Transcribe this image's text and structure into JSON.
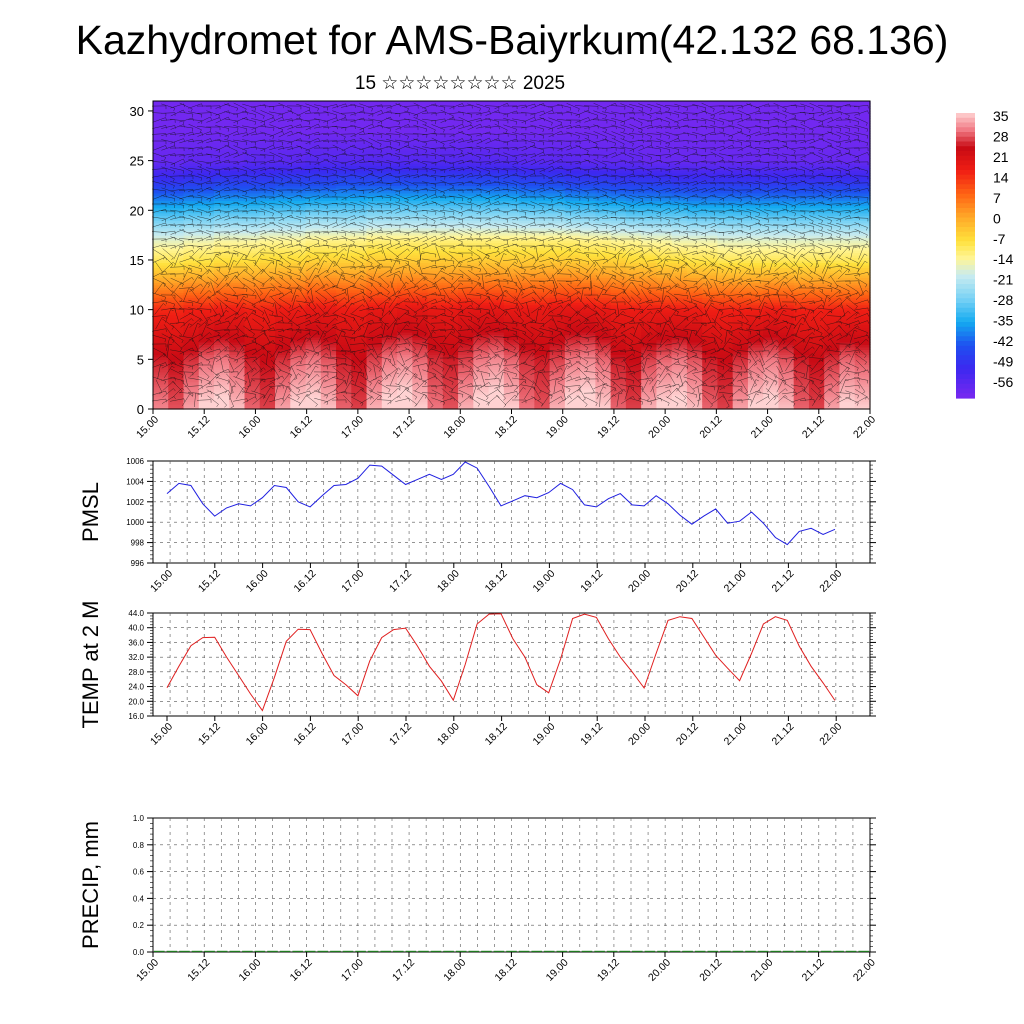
{
  "header": {
    "title": "Kazhydromet for AMS-Baiyrkum(42.132 68.136)",
    "subtitle": "15 ☆☆☆☆☆☆☆☆ 2025"
  },
  "time_labels": [
    "15.00",
    "15.12",
    "16.00",
    "16.12",
    "17.00",
    "17.12",
    "18.00",
    "18.12",
    "19.00",
    "19.12",
    "20.00",
    "20.12",
    "21.00",
    "21.12",
    "22.00"
  ],
  "chart_data": [
    {
      "type": "heatmap",
      "title": "Kazhydromet for AMS-Baiyrkum(42.132 68.136)",
      "subtitle": "15 ☆☆☆☆☆☆☆☆ 2025",
      "x_ticks": [
        "15.00",
        "15.12",
        "16.00",
        "16.12",
        "17.00",
        "17.12",
        "18.00",
        "18.12",
        "19.00",
        "19.12",
        "20.00",
        "20.12",
        "21.00",
        "21.12",
        "22.00"
      ],
      "y_ticks": [
        "0",
        "5",
        "10",
        "15",
        "20",
        "25",
        "30"
      ],
      "ylim": [
        0,
        31
      ],
      "colorbar": {
        "labels": [
          "35",
          "28",
          "21",
          "14",
          "7",
          "0",
          "-7",
          "-14",
          "-21",
          "-28",
          "-35",
          "-42",
          "-49",
          "-56"
        ],
        "range": [
          -60,
          38
        ]
      },
      "levels_temperature_C": [
        {
          "level": 0,
          "values": [
            33,
            30,
            35,
            39,
            40,
            37,
            31,
            29,
            35,
            39,
            40,
            37,
            31,
            29,
            36,
            40,
            41,
            38,
            32,
            30,
            36,
            40,
            41,
            38,
            32,
            30,
            36,
            40,
            41,
            38,
            31,
            29,
            36,
            39,
            40,
            37,
            31,
            29,
            35,
            39,
            40,
            37,
            31,
            29,
            35,
            39,
            38
          ]
        },
        {
          "level": 5,
          "values": [
            27,
            26,
            28,
            31,
            32,
            30,
            27,
            26,
            28,
            31,
            32,
            30,
            27,
            26,
            29,
            32,
            33,
            31,
            28,
            27,
            29,
            32,
            33,
            31,
            28,
            27,
            29,
            32,
            33,
            31,
            27,
            26,
            29,
            31,
            32,
            30,
            27,
            26,
            28,
            31,
            32,
            30,
            27,
            26,
            28,
            31,
            30
          ]
        },
        {
          "level": 10,
          "values": [
            17,
            17,
            18,
            18,
            19,
            19,
            18,
            18,
            19,
            19,
            20,
            20,
            19,
            19,
            20,
            20,
            21,
            21,
            20,
            20,
            21,
            21,
            21,
            20,
            20,
            20,
            21,
            21,
            21,
            20,
            19,
            19,
            19,
            19,
            19,
            19,
            18,
            18,
            18,
            18,
            19,
            19,
            18,
            18,
            18,
            18,
            18
          ]
        },
        {
          "level": 15,
          "values": [
            -8,
            -8,
            -7,
            -7,
            -6,
            -6,
            -6,
            -5,
            -5,
            -5,
            -4,
            -4,
            -4,
            -4,
            -3,
            -3,
            -3,
            -3,
            -3,
            -3,
            -3,
            -3,
            -3,
            -3,
            -3,
            -3,
            -3,
            -3,
            -4,
            -4,
            -4,
            -5,
            -5,
            -6,
            -6,
            -7,
            -7,
            -8,
            -8,
            -8,
            -8,
            -8,
            -8,
            -8,
            -8,
            -8,
            -8
          ]
        },
        {
          "level": 17,
          "values": [
            -15,
            -15,
            -14,
            -14,
            -13,
            -13,
            -13,
            -12,
            -12,
            -12,
            -11,
            -11,
            -11,
            -11,
            -10,
            -10,
            -10,
            -10,
            -10,
            -10,
            -10,
            -10,
            -10,
            -10,
            -10,
            -10,
            -10,
            -10,
            -11,
            -11,
            -12,
            -12,
            -13,
            -13,
            -14,
            -14,
            -14,
            -15,
            -15,
            -15,
            -15,
            -15,
            -15,
            -15,
            -15,
            -15,
            -15
          ]
        },
        {
          "level": 20,
          "values": [
            -32,
            -32,
            -31,
            -31,
            -30,
            -30,
            -30,
            -29,
            -29,
            -29,
            -28,
            -28,
            -28,
            -28,
            -27,
            -27,
            -27,
            -27,
            -27,
            -27,
            -27,
            -27,
            -27,
            -27,
            -28,
            -28,
            -28,
            -29,
            -29,
            -30,
            -30,
            -31,
            -31,
            -31,
            -31,
            -32,
            -32,
            -32,
            -32,
            -32,
            -32,
            -32,
            -32,
            -32,
            -32,
            -32,
            -32
          ]
        },
        {
          "level": 23,
          "values": [
            -48,
            -48,
            -47,
            -47,
            -46,
            -46,
            -46,
            -46,
            -45,
            -45,
            -45,
            -45,
            -44,
            -44,
            -44,
            -44,
            -44,
            -44,
            -44,
            -44,
            -44,
            -44,
            -44,
            -44,
            -45,
            -45,
            -45,
            -46,
            -46,
            -46,
            -47,
            -47,
            -47,
            -47,
            -48,
            -48,
            -48,
            -48,
            -48,
            -48,
            -48,
            -48,
            -48,
            -48,
            -48,
            -48,
            -48
          ]
        },
        {
          "level": 25,
          "values": [
            -57,
            -57,
            -56,
            -56,
            -56,
            -56,
            -55,
            -55,
            -55,
            -55,
            -54,
            -54,
            -54,
            -54,
            -54,
            -54,
            -54,
            -54,
            -54,
            -54,
            -54,
            -54,
            -54,
            -54,
            -55,
            -55,
            -55,
            -55,
            -56,
            -56,
            -56,
            -56,
            -57,
            -57,
            -57,
            -57,
            -57,
            -57,
            -57,
            -57,
            -57,
            -57,
            -57,
            -57,
            -57,
            -57,
            -57
          ]
        },
        {
          "level": 28,
          "values": [
            -59,
            -59,
            -59,
            -59,
            -59,
            -59,
            -59,
            -59,
            -59,
            -59,
            -59,
            -59,
            -59,
            -59,
            -59,
            -59,
            -59,
            -59,
            -59,
            -59,
            -59,
            -59,
            -59,
            -59,
            -59,
            -59,
            -59,
            -59,
            -59,
            -59,
            -59,
            -59,
            -59,
            -59,
            -59,
            -59,
            -59,
            -59,
            -59,
            -59,
            -59,
            -59,
            -59,
            -59,
            -59,
            -59,
            -59
          ]
        },
        {
          "level": 31,
          "values": [
            -59,
            -59,
            -59,
            -59,
            -59,
            -59,
            -59,
            -59,
            -59,
            -59,
            -59,
            -59,
            -59,
            -59,
            -59,
            -59,
            -59,
            -59,
            -59,
            -59,
            -59,
            -59,
            -59,
            -59,
            -59,
            -59,
            -59,
            -59,
            -59,
            -59,
            -59,
            -59,
            -59,
            -59,
            -59,
            -59,
            -59,
            -59,
            -59,
            -59,
            -59,
            -59,
            -59,
            -59,
            -59,
            -59,
            -59
          ]
        }
      ],
      "wind_barbs": true,
      "grid": false
    },
    {
      "type": "line",
      "ylabel": "PMSL",
      "ylim": [
        996,
        1006
      ],
      "y_ticks": [
        "996",
        "998",
        "1000",
        "1002",
        "1004",
        "1006"
      ],
      "x_ticks": [
        "15.00",
        "15.12",
        "16.00",
        "16.12",
        "17.00",
        "17.12",
        "18.00",
        "18.12",
        "19.00",
        "19.12",
        "20.00",
        "20.12",
        "21.00",
        "21.12",
        "22.00"
      ],
      "series": [
        {
          "color": "#1f1fe0",
          "values": [
            1002.8,
            1003.8,
            1003.6,
            1001.8,
            1000.6,
            1001.4,
            1001.8,
            1001.6,
            1002.4,
            1003.6,
            1003.4,
            1002.0,
            1001.5,
            1002.6,
            1003.6,
            1003.7,
            1004.3,
            1005.6,
            1005.5,
            1004.6,
            1003.7,
            1004.2,
            1004.7,
            1004.2,
            1004.7,
            1005.9,
            1005.3,
            1003.5,
            1001.6,
            1002.1,
            1002.6,
            1002.4,
            1002.9,
            1003.8,
            1003.2,
            1001.7,
            1001.5,
            1002.3,
            1002.8,
            1001.7,
            1001.6,
            1002.6,
            1001.8,
            1000.7,
            999.8,
            1000.6,
            1001.3,
            999.9,
            1000.1,
            1001.0,
            999.9,
            998.5,
            997.8,
            999.1,
            999.4,
            998.8,
            999.3
          ]
        }
      ],
      "grid": true
    },
    {
      "type": "line",
      "ylabel": "TEMP at 2 M",
      "ylim": [
        16.0,
        44.0
      ],
      "y_ticks": [
        "16.0",
        "20.0",
        "24.0",
        "28.0",
        "32.0",
        "36.0",
        "40.0",
        "44.0"
      ],
      "x_ticks": [
        "15.00",
        "15.12",
        "16.00",
        "16.12",
        "17.00",
        "17.12",
        "18.00",
        "18.12",
        "19.00",
        "19.12",
        "20.00",
        "20.12",
        "21.00",
        "21.12",
        "22.00"
      ],
      "series": [
        {
          "color": "#e01f1f",
          "values": [
            23.7,
            29.5,
            35.1,
            37.3,
            37.4,
            32.0,
            27.0,
            22.0,
            17.5,
            26.5,
            36.3,
            39.6,
            39.5,
            33.0,
            27.0,
            24.5,
            21.5,
            31.0,
            37.3,
            39.5,
            39.9,
            35.0,
            29.5,
            25.5,
            20.3,
            30.0,
            41.0,
            43.7,
            43.8,
            37.0,
            32.0,
            24.5,
            22.3,
            31.5,
            42.5,
            43.7,
            42.8,
            37.0,
            32.0,
            28.0,
            23.6,
            33.0,
            42.0,
            43.0,
            42.5,
            37.5,
            32.5,
            29.0,
            25.6,
            33.0,
            41.0,
            43.0,
            42.0,
            35.0,
            29.5,
            25.0,
            20.2
          ]
        }
      ],
      "grid": true
    },
    {
      "type": "bar",
      "ylabel": "PRECIP, mm",
      "ylim": [
        0.0,
        1.0
      ],
      "y_ticks": [
        "0.0",
        "0.2",
        "0.4",
        "0.6",
        "0.8",
        "1.0"
      ],
      "x_ticks": [
        "15.00",
        "15.12",
        "16.00",
        "16.12",
        "17.00",
        "17.12",
        "18.00",
        "18.12",
        "19.00",
        "19.12",
        "20.00",
        "20.12",
        "21.00",
        "21.12",
        "22.00"
      ],
      "values": [
        0,
        0,
        0,
        0,
        0,
        0,
        0,
        0,
        0,
        0,
        0,
        0,
        0,
        0,
        0,
        0,
        0,
        0,
        0,
        0,
        0,
        0,
        0,
        0,
        0,
        0,
        0,
        0,
        0,
        0,
        0,
        0,
        0,
        0,
        0,
        0,
        0,
        0,
        0,
        0,
        0,
        0,
        0,
        0,
        0,
        0,
        0,
        0,
        0,
        0,
        0,
        0,
        0,
        0,
        0,
        0,
        0
      ],
      "series_color": "#1f7a1f",
      "grid": true
    }
  ]
}
